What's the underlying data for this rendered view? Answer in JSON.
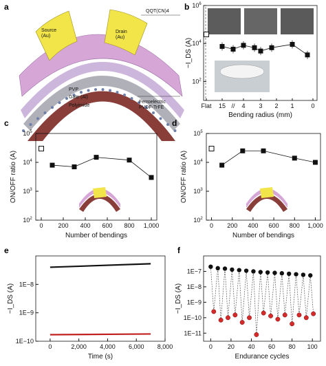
{
  "panels": {
    "a": {
      "letter": "a",
      "labels": {
        "source": "Source\n(Au)",
        "drain": "Drain\n(Au)",
        "qqt": "QQT(CN)4",
        "pvp": "PVP",
        "gate": "Gate (Al)",
        "polyimide": "Polyimide",
        "ferro": "Ferroelectric\nPVDF-TrFE"
      }
    },
    "b": {
      "letter": "b"
    },
    "c": {
      "letter": "c"
    },
    "d": {
      "letter": "d"
    },
    "e": {
      "letter": "e"
    },
    "f": {
      "letter": "f"
    }
  },
  "colors": {
    "data_black": "#111111",
    "red_trace": "#c0201e",
    "red_marker": "#d42a2a",
    "open_marker_fill": "#ffffff",
    "source_drain": "#f2e54a",
    "film_pink": "#d6a6d6",
    "gate_gray": "#b0b0b8",
    "polyimide": "#8a3e3a"
  },
  "chart_data": [
    {
      "panel": "b",
      "type": "scatter",
      "ylabel": "−I_DS (A)",
      "xlabel": "Bending radius (mm)",
      "yscale": "log",
      "ylim": [
        10,
        1000000
      ],
      "yticks": [
        "10^2",
        "10^4",
        "10^6"
      ],
      "x_categories": [
        "Flat",
        "15",
        "4",
        "3",
        "2",
        "1",
        "0"
      ],
      "x_tick_labels": [
        "Flat",
        "15",
        "//",
        "4",
        "3",
        "2",
        "1",
        "0"
      ],
      "points_open": [
        {
          "x": "Flat",
          "y": 30000
        }
      ],
      "series": [
        {
          "x": [
            15,
            10,
            4,
            3,
            2.5,
            2,
            1,
            0.5
          ],
          "y": [
            7000,
            5000,
            8000,
            6000,
            4000,
            6000,
            9000,
            2500
          ],
          "x_positions": [
            "15",
            "break",
            "4",
            "3",
            "3-2",
            "2",
            "1",
            "1-0"
          ]
        }
      ]
    },
    {
      "panel": "c",
      "type": "scatter-line",
      "xlabel": "Number of bendings",
      "ylabel": "ON/OFF ratio (A)",
      "yscale": "log",
      "xlim": [
        -50,
        1050
      ],
      "ylim": [
        100,
        100000
      ],
      "xticks": [
        0,
        200,
        400,
        600,
        800,
        1000
      ],
      "xtick_labels": [
        "0",
        "200",
        "400",
        "600",
        "800",
        "1,000"
      ],
      "yticks": [
        "10^2",
        "10^3",
        "10^4",
        "10^5"
      ],
      "open_point": {
        "x": 0,
        "y": 30000
      },
      "x": [
        100,
        300,
        500,
        800,
        1000
      ],
      "y": [
        8000,
        7000,
        15000,
        12000,
        3000
      ]
    },
    {
      "panel": "d",
      "type": "scatter-line",
      "xlabel": "Number of bendings",
      "ylabel": "ON/OFF ratio (A)",
      "yscale": "log",
      "xlim": [
        -50,
        1050
      ],
      "ylim": [
        100,
        100000
      ],
      "xticks": [
        0,
        200,
        400,
        600,
        800,
        1000
      ],
      "xtick_labels": [
        "0",
        "200",
        "400",
        "600",
        "800",
        "1,000"
      ],
      "yticks": [
        "10^2",
        "10^3",
        "10^4",
        "10^5"
      ],
      "open_point": {
        "x": 0,
        "y": 30000
      },
      "x": [
        100,
        300,
        500,
        800,
        1000
      ],
      "y": [
        8000,
        25000,
        25000,
        14000,
        10000
      ]
    },
    {
      "panel": "e",
      "type": "line",
      "xlabel": "Time (s)",
      "ylabel": "−I_DS (A)",
      "yscale": "log",
      "xlim": [
        -1000,
        8000
      ],
      "ylim": [
        1e-10,
        1e-07
      ],
      "xticks": [
        0,
        2000,
        4000,
        6000,
        8000
      ],
      "xtick_labels": [
        "0",
        "2,000",
        "4,000",
        "6,000",
        "8,000"
      ],
      "ytick_labels": [
        "1E−10",
        "1E−9",
        "1E−8"
      ],
      "series": [
        {
          "color": "black",
          "x": [
            0,
            7000
          ],
          "y": [
            4e-08,
            5.3e-08
          ]
        },
        {
          "color": "red",
          "x": [
            0,
            7000
          ],
          "y": [
            1.7e-10,
            1.8e-10
          ]
        }
      ]
    },
    {
      "panel": "f",
      "type": "scatter",
      "xlabel": "Endurance cycles",
      "ylabel": "−I_DS (A)",
      "yscale": "log",
      "xlim": [
        -7,
        108
      ],
      "ylim": [
        3e-12,
        1e-06
      ],
      "xticks": [
        0,
        20,
        40,
        60,
        80,
        100
      ],
      "ytick_labels": [
        "1E−11",
        "1E−10",
        "1E−9",
        "1E−8",
        "1E−7"
      ],
      "on_x": [
        0,
        7,
        14,
        21,
        28,
        35,
        42,
        49,
        56,
        63,
        70,
        77,
        84,
        91,
        98
      ],
      "on_y": [
        2e-07,
        1.6e-07,
        1.5e-07,
        1.3e-07,
        1.2e-07,
        1.1e-07,
        1e-07,
        9e-08,
        8.5e-08,
        8e-08,
        7.5e-08,
        7e-08,
        6.5e-08,
        6e-08,
        5.5e-08
      ],
      "off_x": [
        3,
        10,
        17,
        24,
        31,
        38,
        45,
        52,
        59,
        66,
        73,
        80,
        87,
        94,
        101
      ],
      "off_y": [
        2.5e-10,
        7e-11,
        1e-10,
        1.5e-10,
        5e-11,
        1e-10,
        8e-12,
        2e-10,
        1.3e-10,
        8e-11,
        1.5e-10,
        4e-11,
        1.5e-10,
        1e-10,
        1.8e-10
      ]
    }
  ]
}
